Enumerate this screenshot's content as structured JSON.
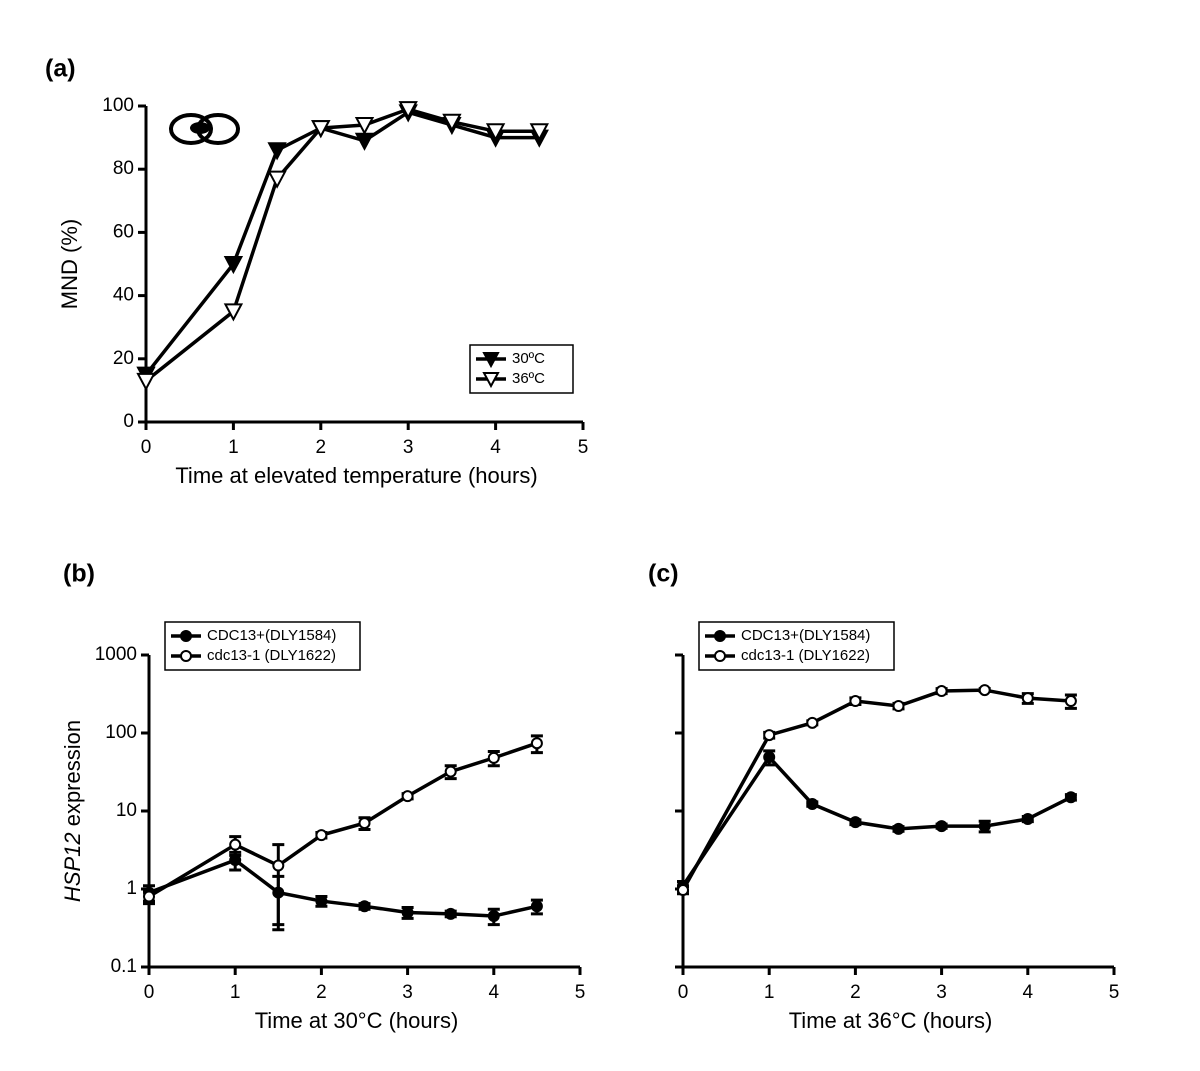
{
  "chart_data": [
    {
      "type": "line",
      "title": "(a)",
      "xlabel": "Time at elevated temperature  (hours)",
      "ylabel": "MND (%)",
      "x": [
        0,
        1,
        1.5,
        2,
        2.5,
        3,
        3.5,
        4,
        4.5
      ],
      "xlim": [
        0,
        5
      ],
      "xticks": [
        0,
        1,
        2,
        3,
        4,
        5
      ],
      "ylim": [
        0,
        100
      ],
      "yticks": [
        0,
        20,
        40,
        60,
        80,
        100
      ],
      "legend": "lower right",
      "series": [
        {
          "name": "30ºC",
          "color": "#000000",
          "fill": "#000000",
          "marker": "triangle-down",
          "values": [
            15,
            50,
            86,
            93,
            89,
            98,
            94,
            90,
            90
          ]
        },
        {
          "name": "36ºC",
          "color": "#000000",
          "fill": "#ffffff",
          "marker": "triangle-down",
          "values": [
            13,
            35,
            77,
            93,
            94,
            99,
            95,
            92,
            92
          ]
        }
      ]
    },
    {
      "type": "line",
      "title": "(b)",
      "xlabel": "Time at 30°C (hours)",
      "ylabel_italic": "HSP12",
      "ylabel": " expression",
      "x": [
        0,
        1,
        1.5,
        2,
        2.5,
        3,
        3.5,
        4,
        4.5
      ],
      "xlim": [
        0,
        5
      ],
      "xticks": [
        0,
        1,
        2,
        3,
        4,
        5
      ],
      "ylim": [
        0.1,
        1000
      ],
      "yticks": [
        0.1,
        1,
        10,
        100,
        1000
      ],
      "log_y": true,
      "legend": "upper left",
      "series": [
        {
          "name": "CDC13+(DLY1584)",
          "color": "#000000",
          "fill": "#000000",
          "marker": "circle",
          "values": [
            0.9,
            2.35,
            0.9,
            0.7,
            0.6,
            0.5,
            0.48,
            0.45,
            0.6
          ],
          "errors": [
            0.2,
            0.6,
            0.55,
            0.1,
            0.05,
            0.08,
            0.04,
            0.1,
            0.12
          ]
        },
        {
          "name": "cdc13-1 (DLY1622)",
          "color": "#000000",
          "fill": "#ffffff",
          "marker": "circle",
          "values": [
            0.8,
            3.7,
            2.0,
            4.9,
            7.0,
            15.5,
            32,
            48,
            74
          ],
          "errors": [
            0.15,
            1.0,
            1.7,
            0.4,
            1.2,
            1.2,
            6,
            10,
            18
          ]
        }
      ]
    },
    {
      "type": "line",
      "title": "(c)",
      "xlabel": "Time at 36°C (hours)",
      "x": [
        0,
        1,
        1.5,
        2,
        2.5,
        3,
        3.5,
        4,
        4.5
      ],
      "xlim": [
        0,
        5
      ],
      "xticks": [
        0,
        1,
        2,
        3,
        4,
        5
      ],
      "ylim": [
        0.1,
        1000
      ],
      "yticks": [
        0.1,
        1,
        10,
        100,
        1000
      ],
      "log_y": true,
      "show_ytick_labels": false,
      "legend": "upper left",
      "series": [
        {
          "name": "CDC13+(DLY1584)",
          "color": "#000000",
          "fill": "#000000",
          "marker": "circle",
          "values": [
            1.1,
            49,
            12.3,
            7.2,
            5.9,
            6.4,
            6.4,
            7.9,
            15
          ],
          "errors": [
            0.15,
            10,
            0.8,
            0.5,
            0.4,
            0.4,
            1.0,
            0.6,
            1.2
          ]
        },
        {
          "name": "cdc13-1 (DLY1622)",
          "color": "#000000",
          "fill": "#ffffff",
          "marker": "circle",
          "values": [
            0.97,
            94,
            135,
            257,
            222,
            345,
            355,
            280,
            257
          ],
          "errors": [
            0.1,
            8,
            8,
            25,
            18,
            25,
            15,
            40,
            50
          ]
        }
      ]
    }
  ]
}
